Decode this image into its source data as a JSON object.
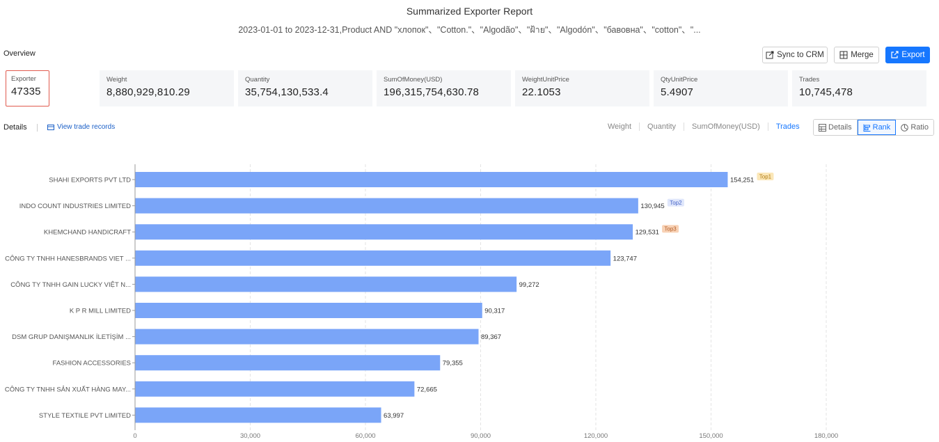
{
  "report": {
    "title": "Summarized Exporter Report",
    "subtitle": "2023-01-01 to 2023-12-31,Product AND \"хлопок\"、\"Cotton.\"、\"Algodão\"、\"ฝ้าย\"、\"Algodón\"、\"бавовна\"、\"cotton\"、\"..."
  },
  "overview": {
    "label": "Overview"
  },
  "toolbar": {
    "sync_label": "Sync to CRM",
    "merge_label": "Merge",
    "export_label": "Export"
  },
  "stats": [
    {
      "label": "Exporter",
      "value": "47335"
    },
    {
      "label": "Weight",
      "value": "8,880,929,810.29"
    },
    {
      "label": "Quantity",
      "value": "35,754,130,533.4"
    },
    {
      "label": "SumOfMoney(USD)",
      "value": "196,315,754,630.78"
    },
    {
      "label": "WeightUnitPrice",
      "value": "22.1053"
    },
    {
      "label": "QtyUnitPrice",
      "value": "5.4907"
    },
    {
      "label": "Trades",
      "value": "10,745,478"
    }
  ],
  "details": {
    "label": "Details",
    "view_trade_records": "View trade records"
  },
  "metric_tabs": [
    {
      "label": "Weight",
      "active": false
    },
    {
      "label": "Quantity",
      "active": false
    },
    {
      "label": "SumOfMoney(USD)",
      "active": false
    },
    {
      "label": "Trades",
      "active": true
    }
  ],
  "view_toggle": [
    {
      "label": "Details",
      "icon": "table-icon",
      "active": false
    },
    {
      "label": "Rank",
      "icon": "bar-rank-icon",
      "active": true
    },
    {
      "label": "Ratio",
      "icon": "pie-icon",
      "active": false
    }
  ],
  "colors": {
    "bar": "#7aa5f8",
    "accent": "#1677ff",
    "highlight_border": "#e05a4e",
    "top1_bg": "#fbe7b8",
    "top1_fg": "#b07a10",
    "top2_bg": "#dfe6fb",
    "top2_fg": "#4a68c8",
    "top3_bg": "#f8d2b6",
    "top3_fg": "#b25a22"
  },
  "chart_data": {
    "type": "bar",
    "orientation": "horizontal",
    "categories": [
      "SHAHI EXPORTS PVT LTD",
      "INDO COUNT INDUSTRIES LIMITED",
      "KHEMCHAND HANDICRAFT",
      "CÔNG TY TNHH HANESBRANDS VIET ...",
      "CÔNG TY TNHH GAIN LUCKY VIỆT N...",
      "K P R MILL LIMITED",
      "DSM GRUP DANIŞMANLIK İLETİŞİM ...",
      "FASHION ACCESSORIES",
      "CÔNG TY TNHH SẢN XUẤT HÀNG MAY...",
      "STYLE TEXTILE PVT LIMITED"
    ],
    "values": [
      154251,
      130945,
      129531,
      123747,
      99272,
      90317,
      89367,
      79355,
      72665,
      63997
    ],
    "value_labels": [
      "154,251",
      "130,945",
      "129,531",
      "123,747",
      "99,272",
      "90,317",
      "89,367",
      "79,355",
      "72,665",
      "63,997"
    ],
    "badges": [
      "Top1",
      "Top2",
      "Top3"
    ],
    "xlim": [
      0,
      180000
    ],
    "xticks": [
      0,
      30000,
      60000,
      90000,
      120000,
      150000,
      180000
    ],
    "xtick_labels": [
      "0",
      "30,000",
      "60,000",
      "90,000",
      "120,000",
      "150,000",
      "180,000"
    ],
    "grid": true
  }
}
